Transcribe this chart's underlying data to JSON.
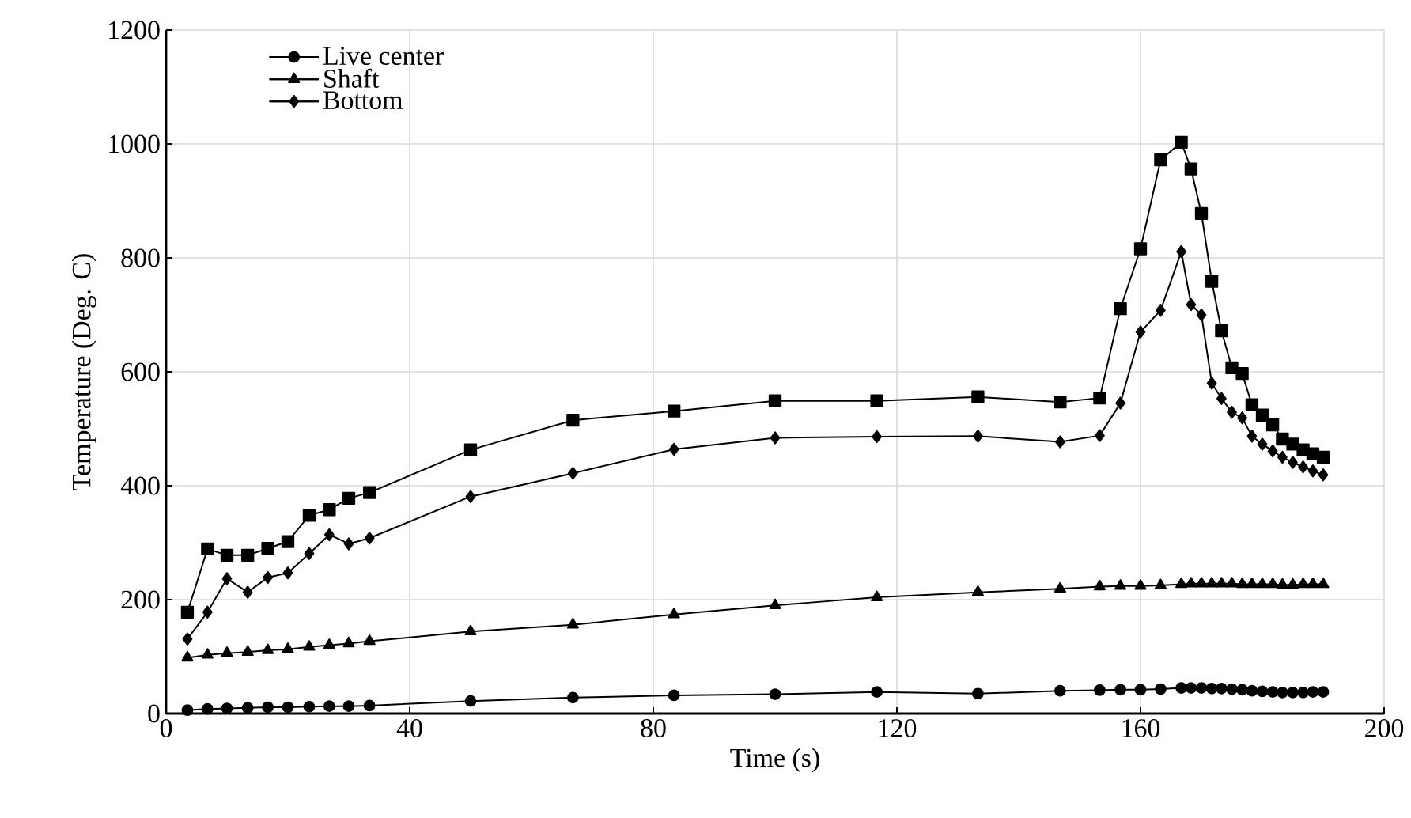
{
  "chart_data": {
    "type": "line",
    "xlabel": "Time (s)",
    "ylabel": "Temperature (Deg. C)",
    "xlim": [
      0,
      200
    ],
    "xticks": [
      0,
      40,
      80,
      120,
      160,
      200
    ],
    "ylim": [
      0,
      1200
    ],
    "yticks": [
      0,
      200,
      400,
      600,
      800,
      1000,
      1200
    ],
    "grid": true,
    "legend": "top left",
    "series": [
      {
        "name": "Live center",
        "color": "#000000",
        "marker": "circle",
        "x": [
          3.5,
          6.8,
          10,
          13.4,
          16.7,
          20,
          23.5,
          26.8,
          30,
          33.4,
          50,
          66.8,
          83.4,
          100,
          116.7,
          133.3,
          146.8,
          153.3,
          156.7,
          160,
          163.3,
          166.7,
          168.3,
          170,
          171.7,
          173.3,
          175,
          176.7,
          178.3,
          180,
          181.7,
          183.3,
          185,
          186.7,
          188.3,
          190
        ],
        "values": [
          6,
          8,
          9,
          10,
          11,
          11,
          12,
          13,
          13,
          14,
          22,
          28,
          32,
          34,
          38,
          35,
          40,
          41,
          42,
          42,
          43,
          45,
          45,
          45,
          44,
          44,
          43,
          42,
          40,
          39,
          38,
          37,
          37,
          37,
          38,
          38
        ]
      },
      {
        "name": "Shaft",
        "color": "#000000",
        "marker": "triangle",
        "x": [
          3.5,
          6.8,
          10,
          13.4,
          16.7,
          20,
          23.5,
          26.8,
          30,
          33.4,
          50,
          66.8,
          83.4,
          100,
          116.7,
          133.3,
          146.8,
          153.3,
          156.7,
          160,
          163.3,
          166.7,
          168.3,
          170,
          171.7,
          173.3,
          175,
          176.7,
          178.3,
          180,
          181.7,
          183.3,
          185,
          186.7,
          188.3,
          190
        ],
        "values": [
          98,
          103,
          106,
          108,
          111,
          113,
          117,
          120,
          123,
          127,
          144,
          156,
          174,
          190,
          204,
          213,
          219,
          223,
          224,
          224,
          225,
          227,
          228,
          228,
          228,
          228,
          228,
          227,
          227,
          227,
          227,
          226,
          226,
          227,
          227,
          227
        ]
      },
      {
        "name": "Bottom",
        "color": "#000000",
        "marker": "diamond",
        "x": [
          3.5,
          6.8,
          10,
          13.4,
          16.7,
          20,
          23.5,
          26.8,
          30,
          33.4,
          50,
          66.8,
          83.4,
          100,
          116.7,
          133.3,
          146.8,
          153.3,
          156.7,
          160,
          163.3,
          166.7,
          168.3,
          170,
          171.7,
          173.3,
          175,
          176.7,
          178.3,
          180,
          181.7,
          183.3,
          185,
          186.7,
          188.3,
          190
        ],
        "values": [
          131,
          178,
          237,
          213,
          239,
          247,
          281,
          314,
          298,
          308,
          381,
          422,
          464,
          484,
          486,
          487,
          477,
          488,
          545,
          670,
          708,
          811,
          718,
          700,
          580,
          553,
          529,
          519,
          487,
          473,
          461,
          450,
          441,
          433,
          426,
          419
        ]
      },
      {
        "color": "#000000",
        "marker": "square",
        "x": [
          3.5,
          6.8,
          10,
          13.4,
          16.7,
          20,
          23.5,
          26.8,
          30,
          33.4,
          50,
          66.8,
          83.4,
          100,
          116.7,
          133.3,
          146.8,
          153.3,
          156.7,
          160,
          163.3,
          166.7,
          168.3,
          170,
          171.7,
          173.3,
          175,
          176.7,
          178.3,
          180,
          181.7,
          183.3,
          185,
          186.7,
          188.3,
          190
        ],
        "values": [
          178,
          289,
          278,
          278,
          290,
          302,
          348,
          358,
          378,
          388,
          463,
          515,
          531,
          549,
          549,
          556,
          547,
          554,
          711,
          816,
          972,
          1003,
          956,
          878,
          759,
          672,
          607,
          597,
          542,
          524,
          507,
          482,
          473,
          463,
          456,
          450
        ]
      }
    ]
  }
}
